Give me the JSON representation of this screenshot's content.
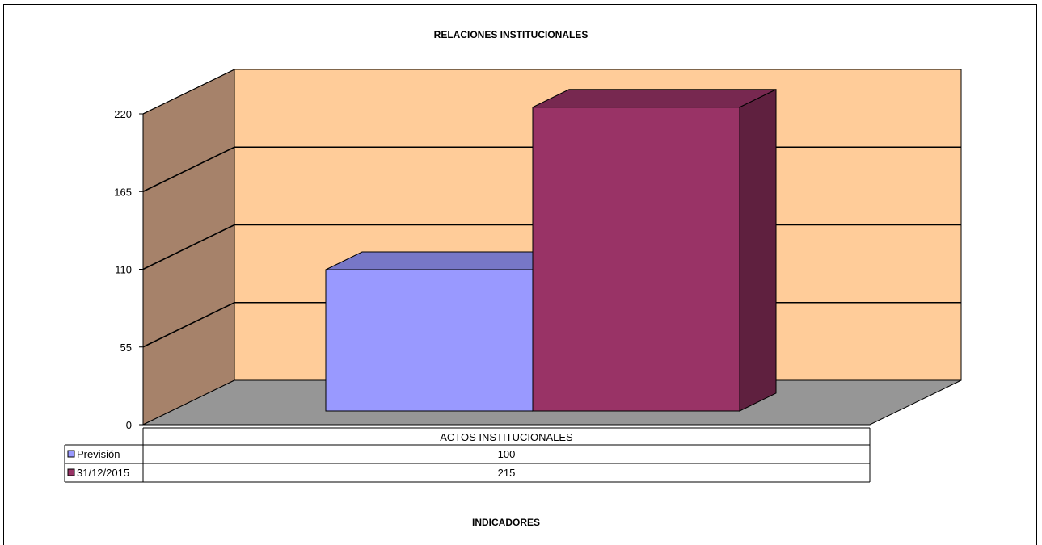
{
  "chart_data": {
    "type": "bar",
    "title": "RELACIONES  INSTITUCIONALES",
    "xlabel": "INDICADORES",
    "ylabel": "",
    "categories": [
      "ACTOS INSTITUCIONALES"
    ],
    "series": [
      {
        "name": "Previsión",
        "values": [
          100
        ],
        "value_labels": [
          "100"
        ],
        "color": "#9999ff"
      },
      {
        "name": "31/12/2015",
        "values": [
          215
        ],
        "value_labels": [
          "215"
        ],
        "color": "#993366"
      }
    ],
    "ylim": [
      0,
      220
    ],
    "yticks": [
      "0",
      "55",
      "110",
      "165",
      "220"
    ],
    "grid": true,
    "legend": "data-table-left",
    "colors": {
      "wall": "#ffcc99",
      "side_wall": "#a6826a",
      "floor": "#969696"
    }
  }
}
